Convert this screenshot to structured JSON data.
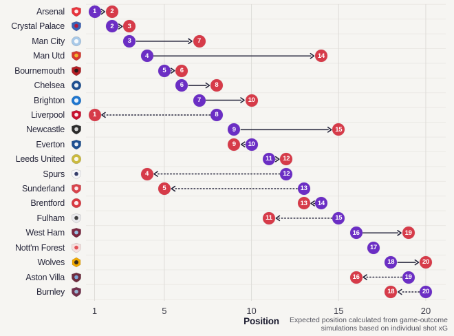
{
  "chart_data": {
    "type": "dumbbell",
    "xlabel": "Position",
    "x_ticks": [
      1,
      5,
      10,
      15,
      20
    ],
    "x_range": [
      1,
      20
    ],
    "grid": true,
    "legend_position": "none",
    "caption_line1": "Expected position calculated from game-outcome",
    "caption_line2": "simulations based on individual shot xG",
    "marker_colors": {
      "actual": "#6B2EC4",
      "expected": "#D63B49"
    },
    "arrow_color": "#23233a",
    "grid_vertical_color": "#dedcd8",
    "grid_horizontal_color": "#ebe9e5",
    "series_meaning": {
      "actual": "actual league position (purple)",
      "expected": "expected position (red)"
    },
    "teams": [
      {
        "name": "Arsenal",
        "actual": 1,
        "expected": 2,
        "crest": {
          "shape": "shield",
          "primary": "#e8343c",
          "secondary": "#ffffff"
        }
      },
      {
        "name": "Crystal Palace",
        "actual": 2,
        "expected": 3,
        "crest": {
          "shape": "shield",
          "primary": "#3b61b4",
          "secondary": "#c4122e"
        }
      },
      {
        "name": "Man City",
        "actual": 3,
        "expected": 7,
        "crest": {
          "shape": "circle",
          "primary": "#a8c9e8",
          "secondary": "#ffffff"
        }
      },
      {
        "name": "Man Utd",
        "actual": 4,
        "expected": 14,
        "crest": {
          "shape": "shield",
          "primary": "#d6392f",
          "secondary": "#f4c430"
        }
      },
      {
        "name": "Bournemouth",
        "actual": 5,
        "expected": 6,
        "crest": {
          "shape": "shield",
          "primary": "#b21f24",
          "secondary": "#1a1a1a"
        }
      },
      {
        "name": "Chelsea",
        "actual": 6,
        "expected": 8,
        "crest": {
          "shape": "circle",
          "primary": "#1d4f91",
          "secondary": "#ffffff"
        }
      },
      {
        "name": "Brighton",
        "actual": 7,
        "expected": 10,
        "crest": {
          "shape": "circle",
          "primary": "#1e76cf",
          "secondary": "#ffffff"
        }
      },
      {
        "name": "Liverpool",
        "actual": 8,
        "expected": 1,
        "crest": {
          "shape": "shield",
          "primary": "#c8102e",
          "secondary": "#ffffff"
        }
      },
      {
        "name": "Newcastle",
        "actual": 9,
        "expected": 15,
        "crest": {
          "shape": "shield",
          "primary": "#2b2b2b",
          "secondary": "#e8e8e8"
        }
      },
      {
        "name": "Everton",
        "actual": 10,
        "expected": 9,
        "crest": {
          "shape": "shield",
          "primary": "#1d4f91",
          "secondary": "#ffffff"
        }
      },
      {
        "name": "Leeds United",
        "actual": 11,
        "expected": 12,
        "crest": {
          "shape": "circle",
          "primary": "#cbba3e",
          "secondary": "#ffffff"
        }
      },
      {
        "name": "Spurs",
        "actual": 12,
        "expected": 4,
        "crest": {
          "shape": "shield",
          "primary": "#f5f5f8",
          "secondary": "#20295a"
        }
      },
      {
        "name": "Sunderland",
        "actual": 13,
        "expected": 5,
        "crest": {
          "shape": "shield",
          "primary": "#d8444c",
          "secondary": "#ffffff"
        }
      },
      {
        "name": "Brentford",
        "actual": 14,
        "expected": 13,
        "crest": {
          "shape": "circle",
          "primary": "#d93840",
          "secondary": "#ffffff"
        }
      },
      {
        "name": "Fulham",
        "actual": 15,
        "expected": 11,
        "crest": {
          "shape": "shield",
          "primary": "#e9e9ec",
          "secondary": "#2b2b2b"
        }
      },
      {
        "name": "West Ham",
        "actual": 16,
        "expected": 19,
        "crest": {
          "shape": "shield",
          "primary": "#7a2740",
          "secondary": "#9bd4f5"
        }
      },
      {
        "name": "Nott'm Forest",
        "actual": 17,
        "expected": 17,
        "crest": {
          "shape": "shield",
          "primary": "#f6dfde",
          "secondary": "#e04248"
        }
      },
      {
        "name": "Wolves",
        "actual": 18,
        "expected": 20,
        "crest": {
          "shape": "hex",
          "primary": "#f2a900",
          "secondary": "#231f20"
        }
      },
      {
        "name": "Aston Villa",
        "actual": 19,
        "expected": 16,
        "crest": {
          "shape": "shield",
          "primary": "#6e2c3e",
          "secondary": "#7fb2e5"
        }
      },
      {
        "name": "Burnley",
        "actual": 20,
        "expected": 18,
        "crest": {
          "shape": "shield",
          "primary": "#72304c",
          "secondary": "#9bc4e2"
        }
      }
    ]
  }
}
